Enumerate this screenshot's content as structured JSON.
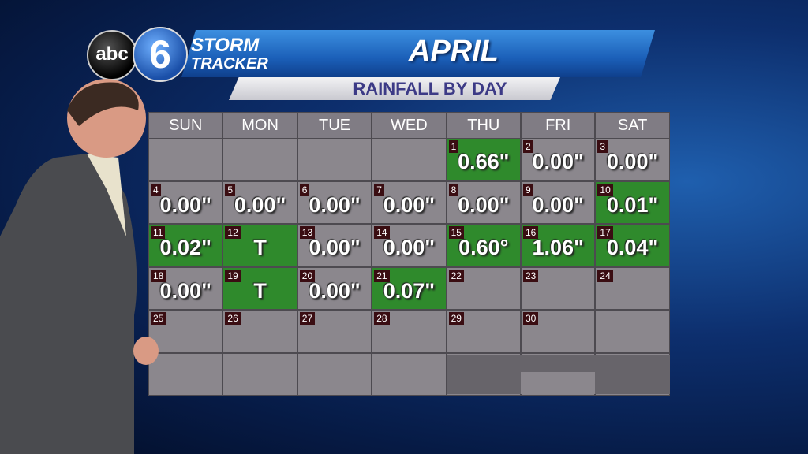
{
  "logo": {
    "network": "abc",
    "channel": "6",
    "line1": "STORM",
    "line2": "TRACKER"
  },
  "header": {
    "title": "APRIL",
    "subtitle": "RAINFALL BY DAY"
  },
  "calendar": {
    "weekdays": [
      "SUN",
      "MON",
      "TUE",
      "WED",
      "THU",
      "FRI",
      "SAT"
    ],
    "highlight_color": "#2f8a2c",
    "cell_color": "#8b878d",
    "weeks": [
      [
        null,
        null,
        null,
        null,
        {
          "day": 1,
          "value": "0.66\"",
          "highlight": true
        },
        {
          "day": 2,
          "value": "0.00\""
        },
        {
          "day": 3,
          "value": "0.00\""
        }
      ],
      [
        {
          "day": 4,
          "value": "0.00\""
        },
        {
          "day": 5,
          "value": "0.00\""
        },
        {
          "day": 6,
          "value": "0.00\""
        },
        {
          "day": 7,
          "value": "0.00\""
        },
        {
          "day": 8,
          "value": "0.00\""
        },
        {
          "day": 9,
          "value": "0.00\""
        },
        {
          "day": 10,
          "value": "0.01\"",
          "highlight": true
        }
      ],
      [
        {
          "day": 11,
          "value": "0.02\"",
          "highlight": true
        },
        {
          "day": 12,
          "value": "T",
          "highlight": true
        },
        {
          "day": 13,
          "value": "0.00\""
        },
        {
          "day": 14,
          "value": "0.00\""
        },
        {
          "day": 15,
          "value": "0.60°",
          "highlight": true
        },
        {
          "day": 16,
          "value": "1.06\"",
          "highlight": true
        },
        {
          "day": 17,
          "value": "0.04\"",
          "highlight": true
        }
      ],
      [
        {
          "day": 18,
          "value": "0.00\""
        },
        {
          "day": 19,
          "value": "T",
          "highlight": true
        },
        {
          "day": 20,
          "value": "0.00\""
        },
        {
          "day": 21,
          "value": "0.07\"",
          "highlight": true
        },
        {
          "day": 22
        },
        {
          "day": 23
        },
        {
          "day": 24
        }
      ],
      [
        {
          "day": 25
        },
        {
          "day": 26
        },
        {
          "day": 27
        },
        {
          "day": 28
        },
        {
          "day": 29
        },
        {
          "day": 30
        },
        null
      ],
      [
        null,
        null,
        null,
        null,
        null,
        null,
        null
      ]
    ]
  }
}
